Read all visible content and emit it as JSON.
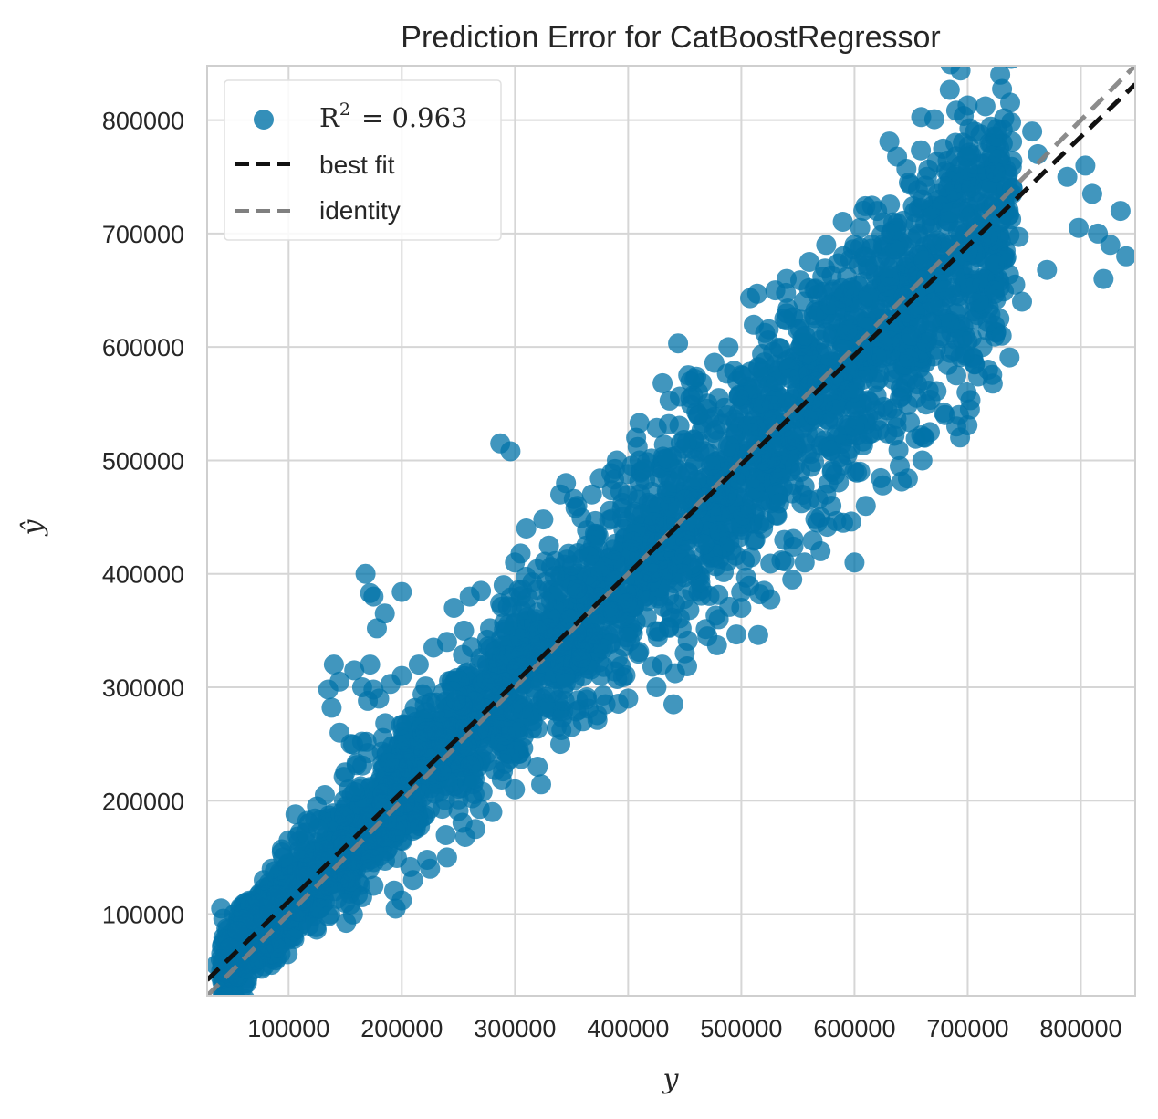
{
  "chart_data": {
    "type": "scatter",
    "title": "Prediction Error for CatBoostRegressor",
    "xlabel": "y",
    "ylabel": "ŷ",
    "xlim": [
      28000,
      848000
    ],
    "ylim": [
      28000,
      848000
    ],
    "xticks": [
      100000,
      200000,
      300000,
      400000,
      500000,
      600000,
      700000,
      800000
    ],
    "yticks": [
      100000,
      200000,
      300000,
      400000,
      500000,
      600000,
      700000,
      800000
    ],
    "grid": true,
    "legend": {
      "placement": "top-left",
      "entries": [
        {
          "key": "scatter",
          "label": "R",
          "sup": "2",
          "value_text": "= 0.963"
        },
        {
          "key": "best_fit",
          "label": "best fit"
        },
        {
          "key": "identity",
          "label": "identity"
        }
      ]
    },
    "r2": 0.963,
    "best_fit": {
      "slope": 0.963,
      "intercept": 15000
    },
    "identity": {
      "slope": 1,
      "intercept": 0
    },
    "colors": {
      "points": "#0173a8",
      "best_fit": "#111111",
      "identity": "#808080",
      "grid": "#d6d6d6",
      "frame": "#cfcfcf"
    },
    "points": [
      [
        815000,
        700000
      ],
      [
        826000,
        690000
      ],
      [
        840000,
        680000
      ],
      [
        788000,
        750000
      ],
      [
        804000,
        760000
      ],
      [
        762000,
        770000
      ],
      [
        757000,
        790000
      ],
      [
        700000,
        813000
      ],
      [
        810000,
        735000
      ],
      [
        835000,
        720000
      ],
      [
        798000,
        705000
      ],
      [
        745000,
        697000
      ],
      [
        770000,
        668000
      ],
      [
        820000,
        660000
      ],
      [
        742000,
        655000
      ],
      [
        660000,
        730000
      ],
      [
        648000,
        745000
      ],
      [
        664000,
        750000
      ],
      [
        620000,
        720000
      ],
      [
        605000,
        705000
      ],
      [
        600000,
        690000
      ],
      [
        632000,
        700000
      ],
      [
        575000,
        690000
      ],
      [
        590000,
        680000
      ],
      [
        560000,
        675000
      ],
      [
        540000,
        660000
      ],
      [
        530000,
        650000
      ],
      [
        514000,
        647000
      ],
      [
        555000,
        640000
      ],
      [
        538000,
        625000
      ],
      [
        612000,
        645000
      ],
      [
        650000,
        610000
      ],
      [
        680000,
        650000
      ],
      [
        700000,
        605000
      ],
      [
        705000,
        590000
      ],
      [
        690000,
        575000
      ],
      [
        710000,
        640000
      ],
      [
        715000,
        660000
      ],
      [
        688000,
        665000
      ],
      [
        723000,
        650000
      ],
      [
        748000,
        640000
      ],
      [
        728000,
        625000
      ],
      [
        713000,
        600000
      ],
      [
        699000,
        560000
      ],
      [
        690000,
        530000
      ],
      [
        648000,
        590000
      ],
      [
        640000,
        555000
      ],
      [
        620000,
        535000
      ],
      [
        600000,
        530000
      ],
      [
        596000,
        510000
      ],
      [
        580000,
        490000
      ],
      [
        575000,
        470000
      ],
      [
        560000,
        465000
      ],
      [
        570000,
        450000
      ],
      [
        600000,
        410000
      ],
      [
        605000,
        490000
      ],
      [
        480000,
        555000
      ],
      [
        470000,
        550000
      ],
      [
        462000,
        540000
      ],
      [
        455000,
        555000
      ],
      [
        410000,
        533000
      ],
      [
        407000,
        520000
      ],
      [
        287000,
        515000
      ],
      [
        296000,
        508000
      ],
      [
        345000,
        480000
      ],
      [
        352000,
        466000
      ],
      [
        368000,
        470000
      ],
      [
        375000,
        484000
      ],
      [
        390000,
        500000
      ],
      [
        410000,
        500000
      ],
      [
        355000,
        460000
      ],
      [
        340000,
        470000
      ],
      [
        325000,
        448000
      ],
      [
        310000,
        440000
      ],
      [
        330000,
        425000
      ],
      [
        305000,
        418000
      ],
      [
        300000,
        410000
      ],
      [
        290000,
        390000
      ],
      [
        270000,
        385000
      ],
      [
        260000,
        380000
      ],
      [
        246000,
        370000
      ],
      [
        255000,
        350000
      ],
      [
        240000,
        340000
      ],
      [
        228000,
        335000
      ],
      [
        215000,
        320000
      ],
      [
        200000,
        310000
      ],
      [
        190000,
        303000
      ],
      [
        175000,
        298000
      ],
      [
        165000,
        300000
      ],
      [
        170000,
        288000
      ],
      [
        180000,
        290000
      ],
      [
        172000,
        383000
      ],
      [
        168000,
        400000
      ],
      [
        175000,
        380000
      ],
      [
        200000,
        384000
      ],
      [
        185000,
        365000
      ],
      [
        178000,
        352000
      ],
      [
        172000,
        320000
      ],
      [
        158000,
        315000
      ],
      [
        145000,
        305000
      ],
      [
        135000,
        298000
      ],
      [
        140000,
        320000
      ],
      [
        138000,
        282000
      ],
      [
        145000,
        260000
      ],
      [
        155000,
        250000
      ],
      [
        165000,
        252000
      ],
      [
        170000,
        242000
      ],
      [
        150000,
        225000
      ],
      [
        132000,
        205000
      ],
      [
        125000,
        195000
      ],
      [
        118000,
        180000
      ],
      [
        110000,
        172000
      ],
      [
        100000,
        165000
      ],
      [
        95000,
        150000
      ],
      [
        85000,
        140000
      ],
      [
        78000,
        130000
      ],
      [
        66000,
        108000
      ],
      [
        60000,
        95000
      ],
      [
        55000,
        85000
      ],
      [
        48000,
        70000
      ],
      [
        40000,
        60000
      ],
      [
        36000,
        55000
      ],
      [
        45000,
        48000
      ],
      [
        55000,
        45000
      ],
      [
        62000,
        52000
      ],
      [
        75000,
        62000
      ],
      [
        90000,
        70000
      ],
      [
        105000,
        78000
      ],
      [
        118000,
        90000
      ],
      [
        135000,
        98000
      ],
      [
        150000,
        110000
      ],
      [
        165000,
        115000
      ],
      [
        175000,
        125000
      ],
      [
        200000,
        112000
      ],
      [
        210000,
        130000
      ],
      [
        225000,
        140000
      ],
      [
        240000,
        150000
      ],
      [
        256000,
        168000
      ],
      [
        265000,
        175000
      ],
      [
        280000,
        190000
      ],
      [
        300000,
        210000
      ],
      [
        320000,
        230000
      ],
      [
        340000,
        250000
      ],
      [
        350000,
        265000
      ],
      [
        360000,
        270000
      ],
      [
        380000,
        285000
      ],
      [
        400000,
        290000
      ],
      [
        425000,
        300000
      ],
      [
        440000,
        285000
      ],
      [
        430000,
        320000
      ],
      [
        450000,
        330000
      ],
      [
        470000,
        345000
      ],
      [
        480000,
        360000
      ],
      [
        500000,
        370000
      ],
      [
        520000,
        385000
      ],
      [
        545000,
        395000
      ],
      [
        556000,
        410000
      ],
      [
        570000,
        420000
      ],
      [
        590000,
        445000
      ],
      [
        610000,
        460000
      ],
      [
        625000,
        478000
      ],
      [
        640000,
        495000
      ],
      [
        660000,
        500000
      ],
      [
        662000,
        520000
      ],
      [
        680000,
        540000
      ],
      [
        702000,
        545000
      ],
      [
        718000,
        580000
      ],
      [
        730000,
        610000
      ]
    ]
  }
}
